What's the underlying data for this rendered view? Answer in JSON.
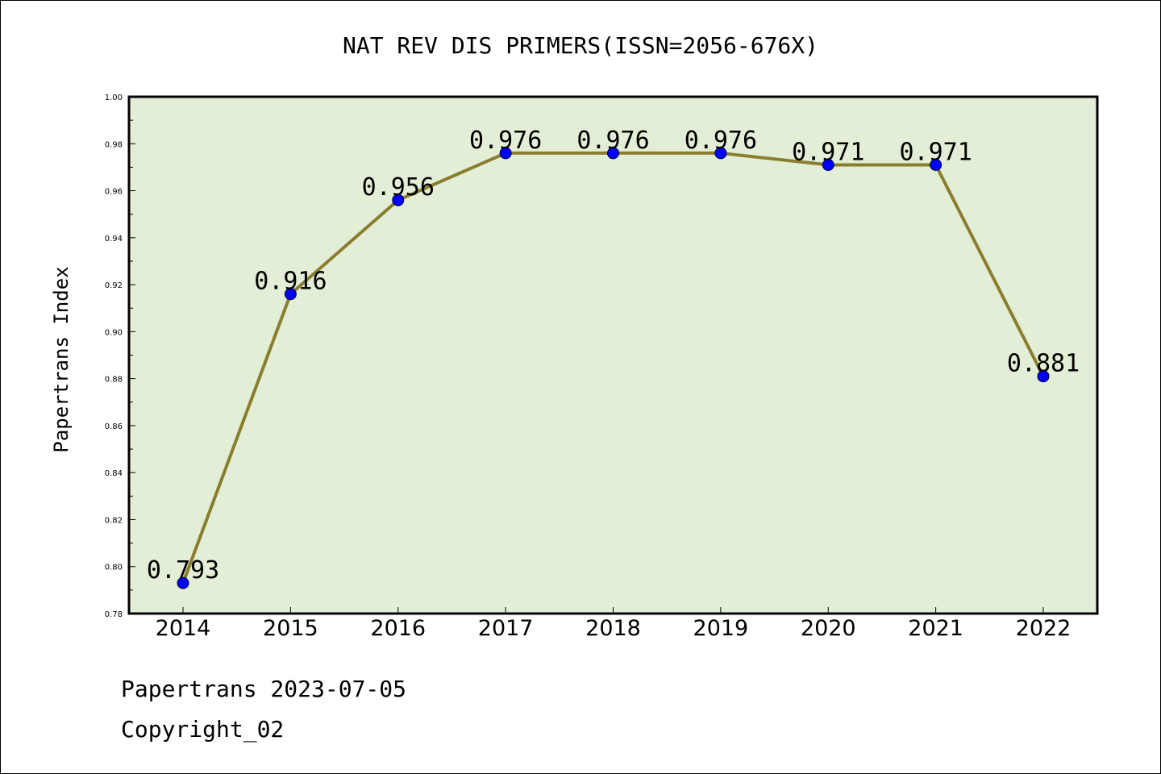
{
  "chart_data": {
    "type": "line",
    "title": "NAT REV DIS PRIMERS(ISSN=2056-676X)",
    "xlabel": "",
    "ylabel": "Papertrans Index",
    "categories": [
      "2014",
      "2015",
      "2016",
      "2017",
      "2018",
      "2019",
      "2020",
      "2021",
      "2022"
    ],
    "series": [
      {
        "values": [
          0.793,
          0.916,
          0.956,
          0.976,
          0.976,
          0.976,
          0.971,
          0.971,
          0.881
        ]
      }
    ],
    "data_labels": [
      "0.793",
      "0.916",
      "0.956",
      "0.976",
      "0.976",
      "0.976",
      "0.971",
      "0.971",
      "0.881"
    ],
    "ylim": [
      0.78,
      1.0
    ],
    "yticks": [
      "0.78",
      "0.80",
      "0.82",
      "0.84",
      "0.86",
      "0.88",
      "0.90",
      "0.92",
      "0.94",
      "0.96",
      "0.98",
      "1.00"
    ],
    "grid": false,
    "colors": {
      "plot_background": "#e2efd6",
      "line": "#8b7d2e",
      "marker": "#0000ff"
    }
  },
  "footer": {
    "source": "Papertrans 2023-07-05",
    "copyright": "Copyright_02"
  }
}
